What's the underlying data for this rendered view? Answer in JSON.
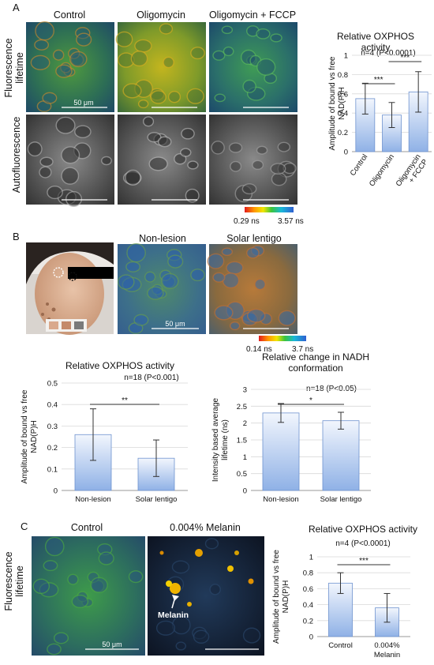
{
  "panel_a": {
    "label": "A",
    "columns": [
      "Control",
      "Oligomycin",
      "Oligomycin + FCCP"
    ],
    "rows": [
      "Fluorescence lifetime",
      "Autofluorescence"
    ],
    "scale_bar": "50 μm",
    "colorbar": {
      "min": "0.29 ns",
      "max": "3.57 ns"
    }
  },
  "panel_b": {
    "label": "B",
    "columns": [
      "Non-lesion",
      "Solar lentigo"
    ],
    "scale_bar": "50 μm",
    "colorbar": {
      "min": "0.14 ns",
      "max": "3.7 ns"
    }
  },
  "panel_c": {
    "label": "C",
    "columns": [
      "Control",
      "0.004% Melanin"
    ],
    "row": "Fluorescence lifetime",
    "melanin_label": "Melanin",
    "scale_bar": "50 μm"
  },
  "chart_data": [
    {
      "id": "A",
      "type": "bar",
      "title": "Relative OXPHOS activity",
      "stat": "n=4 (P<0.0001)",
      "ylabel": "Amplitude of bound vs free NAD(P)H",
      "categories": [
        "Control",
        "Oligomycin",
        "Oligomycin + FCCP"
      ],
      "values": [
        0.55,
        0.38,
        0.62
      ],
      "errors": [
        0.16,
        0.13,
        0.21
      ],
      "ylim": [
        0,
        1
      ],
      "yticks": [
        "0",
        "0.2",
        "0.4",
        "0.6",
        "0.8",
        "1"
      ],
      "significance": [
        {
          "between": [
            0,
            1
          ],
          "label": "***"
        },
        {
          "between": [
            1,
            2
          ],
          "label": "***"
        }
      ]
    },
    {
      "id": "B1",
      "type": "bar",
      "title": "Relative OXPHOS activity",
      "stat": "n=18 (P<0.001)",
      "ylabel": "Amplitude of bound vs free NAD(P)H",
      "categories": [
        "Non-lesion",
        "Solar lentigo"
      ],
      "values": [
        0.26,
        0.15
      ],
      "errors": [
        0.12,
        0.085
      ],
      "ylim": [
        0,
        0.5
      ],
      "yticks": [
        "0",
        "0.1",
        "0.2",
        "0.3",
        "0.4",
        "0.5"
      ],
      "significance": [
        {
          "between": [
            0,
            1
          ],
          "label": "**"
        }
      ]
    },
    {
      "id": "B2",
      "type": "bar",
      "title": "Relative change in NADH conformation",
      "stat": "n=18 (P<0.05)",
      "ylabel": "Intensity based average lifetime (ns)",
      "categories": [
        "Non-lesion",
        "Solar lentigo"
      ],
      "values": [
        2.3,
        2.07
      ],
      "errors": [
        0.28,
        0.25
      ],
      "ylim": [
        0,
        3
      ],
      "yticks": [
        "0",
        "0.5",
        "1",
        "1.5",
        "2",
        "2.5",
        "3"
      ],
      "significance": [
        {
          "between": [
            0,
            1
          ],
          "label": "*"
        }
      ]
    },
    {
      "id": "C",
      "type": "bar",
      "title": "Relative OXPHOS activity",
      "stat": "n=4 (P<0.0001)",
      "ylabel": "Amplitude of bound vs free NAD(P)H",
      "categories": [
        "Control",
        "0.004% Melanin"
      ],
      "values": [
        0.67,
        0.36
      ],
      "errors": [
        0.13,
        0.18
      ],
      "ylim": [
        0,
        1
      ],
      "yticks": [
        "0",
        "0.2",
        "0.4",
        "0.6",
        "0.8",
        "1"
      ],
      "significance": [
        {
          "between": [
            0,
            1
          ],
          "label": "***"
        }
      ]
    }
  ]
}
